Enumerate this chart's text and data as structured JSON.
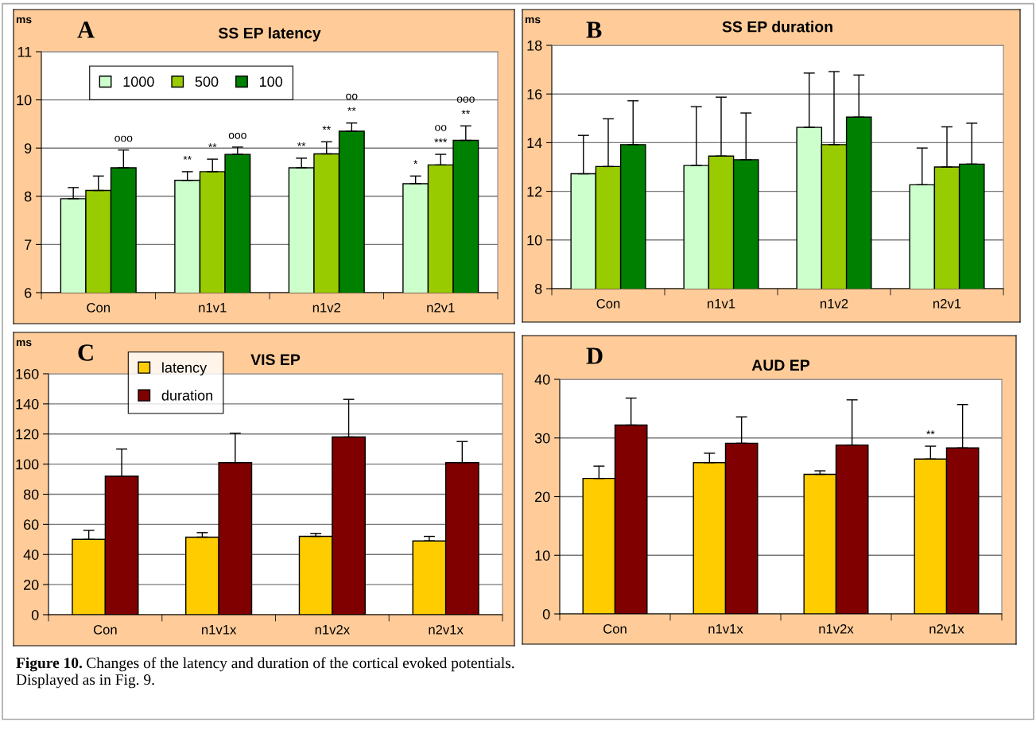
{
  "chart_data": [
    {
      "type": "bar",
      "title": "SS EP latency",
      "ylabel": "ms",
      "categories": [
        "Con",
        "n1v1",
        "n1v2",
        "n2v1"
      ],
      "ylim": [
        6,
        11
      ],
      "yticks": [
        6,
        7,
        8,
        9,
        10,
        11
      ],
      "grid": "y",
      "legend": "top left",
      "annotations": [
        "A"
      ],
      "series": [
        {
          "name": "1000",
          "color": "#ccffcc",
          "values": [
            7.95,
            8.33,
            8.59,
            8.26
          ],
          "errors": [
            [
              7.95,
              8.18
            ],
            [
              8.33,
              8.51
            ],
            [
              8.59,
              8.79
            ],
            [
              8.26,
              8.42
            ]
          ],
          "value_labels": [
            null,
            "**",
            "**",
            "*"
          ]
        },
        {
          "name": "500",
          "color": "#99cc00",
          "values": [
            8.12,
            8.51,
            8.88,
            8.65
          ],
          "errors": [
            [
              8.12,
              8.42
            ],
            [
              8.51,
              8.77
            ],
            [
              8.88,
              9.13
            ],
            [
              8.65,
              8.87
            ]
          ],
          "value_labels": [
            null,
            "**",
            "**",
            "oo\n***"
          ]
        },
        {
          "name": "100",
          "color": "#008000",
          "values": [
            8.59,
            8.87,
            9.35,
            9.16
          ],
          "errors": [
            [
              8.59,
              8.96
            ],
            [
              8.87,
              9.02
            ],
            [
              9.35,
              9.52
            ],
            [
              9.16,
              9.46
            ]
          ],
          "value_labels": [
            "ooo",
            "ooo",
            "oo\n**",
            "ooo\n**"
          ]
        }
      ]
    },
    {
      "type": "bar",
      "title": "SS EP duration",
      "ylabel": "ms",
      "categories": [
        "Con",
        "n1v1",
        "n1v2",
        "n2v1"
      ],
      "ylim": [
        8,
        18
      ],
      "yticks": [
        8,
        10,
        12,
        14,
        16,
        18
      ],
      "grid": "y",
      "annotations": [
        "B"
      ],
      "series": [
        {
          "color": "#ccffcc",
          "values": [
            12.72,
            13.06,
            14.63,
            12.27
          ],
          "errors": [
            [
              12.72,
              14.3
            ],
            [
              13.06,
              15.48
            ],
            [
              14.63,
              16.86
            ],
            [
              12.27,
              13.78
            ]
          ]
        },
        {
          "color": "#99cc00",
          "values": [
            13.02,
            13.45,
            13.92,
            13.0
          ],
          "errors": [
            [
              13.02,
              14.98
            ],
            [
              13.45,
              15.87
            ],
            [
              13.92,
              16.92
            ],
            [
              13.0,
              14.65
            ]
          ]
        },
        {
          "color": "#008000",
          "values": [
            13.92,
            13.3,
            15.05,
            13.12
          ],
          "errors": [
            [
              13.92,
              15.72
            ],
            [
              13.3,
              15.22
            ],
            [
              15.05,
              16.78
            ],
            [
              13.12,
              14.8
            ]
          ]
        }
      ]
    },
    {
      "type": "bar",
      "title": "VIS EP",
      "ylabel": "ms",
      "categories": [
        "Con",
        "n1v1x",
        "n1v2x",
        "n2v1x"
      ],
      "ylim": [
        0,
        160
      ],
      "yticks": [
        0,
        20,
        40,
        60,
        80,
        100,
        120,
        140,
        160
      ],
      "grid": "y",
      "legend": "top left",
      "annotations": [
        "C"
      ],
      "series": [
        {
          "name": "latency",
          "color": "#ffcc00",
          "values": [
            50,
            51.5,
            52,
            49
          ],
          "errors": [
            [
              50,
              56
            ],
            [
              51.5,
              54.5
            ],
            [
              52,
              54
            ],
            [
              49,
              52
            ]
          ]
        },
        {
          "name": "duration",
          "color": "#800000",
          "values": [
            92,
            101,
            118,
            101
          ],
          "errors": [
            [
              92,
              110
            ],
            [
              101,
              120.5
            ],
            [
              118,
              143
            ],
            [
              101,
              115
            ]
          ]
        }
      ]
    },
    {
      "type": "bar",
      "title": "AUD EP",
      "categories": [
        "Con",
        "n1v1x",
        "n1v2x",
        "n2v1x"
      ],
      "ylim": [
        0,
        40
      ],
      "yticks": [
        0,
        10,
        20,
        30,
        40
      ],
      "grid": "y",
      "annotations": [
        "D",
        "Figure 10.",
        "Changes of the latency and duration of the cortical evoked potentials.",
        "Displayed as in Fig. 9."
      ],
      "series": [
        {
          "color": "#ffcc00",
          "values": [
            23.1,
            25.8,
            23.8,
            26.4
          ],
          "errors": [
            [
              23.1,
              25.2
            ],
            [
              25.8,
              27.4
            ],
            [
              23.8,
              24.4
            ],
            [
              26.4,
              28.6
            ]
          ],
          "value_labels": [
            null,
            null,
            null,
            "**"
          ]
        },
        {
          "color": "#800000",
          "values": [
            32.2,
            29.1,
            28.8,
            28.3
          ],
          "errors": [
            [
              32.2,
              36.8
            ],
            [
              29.1,
              33.6
            ],
            [
              28.8,
              36.5
            ],
            [
              28.3,
              35.7
            ]
          ]
        }
      ]
    }
  ]
}
